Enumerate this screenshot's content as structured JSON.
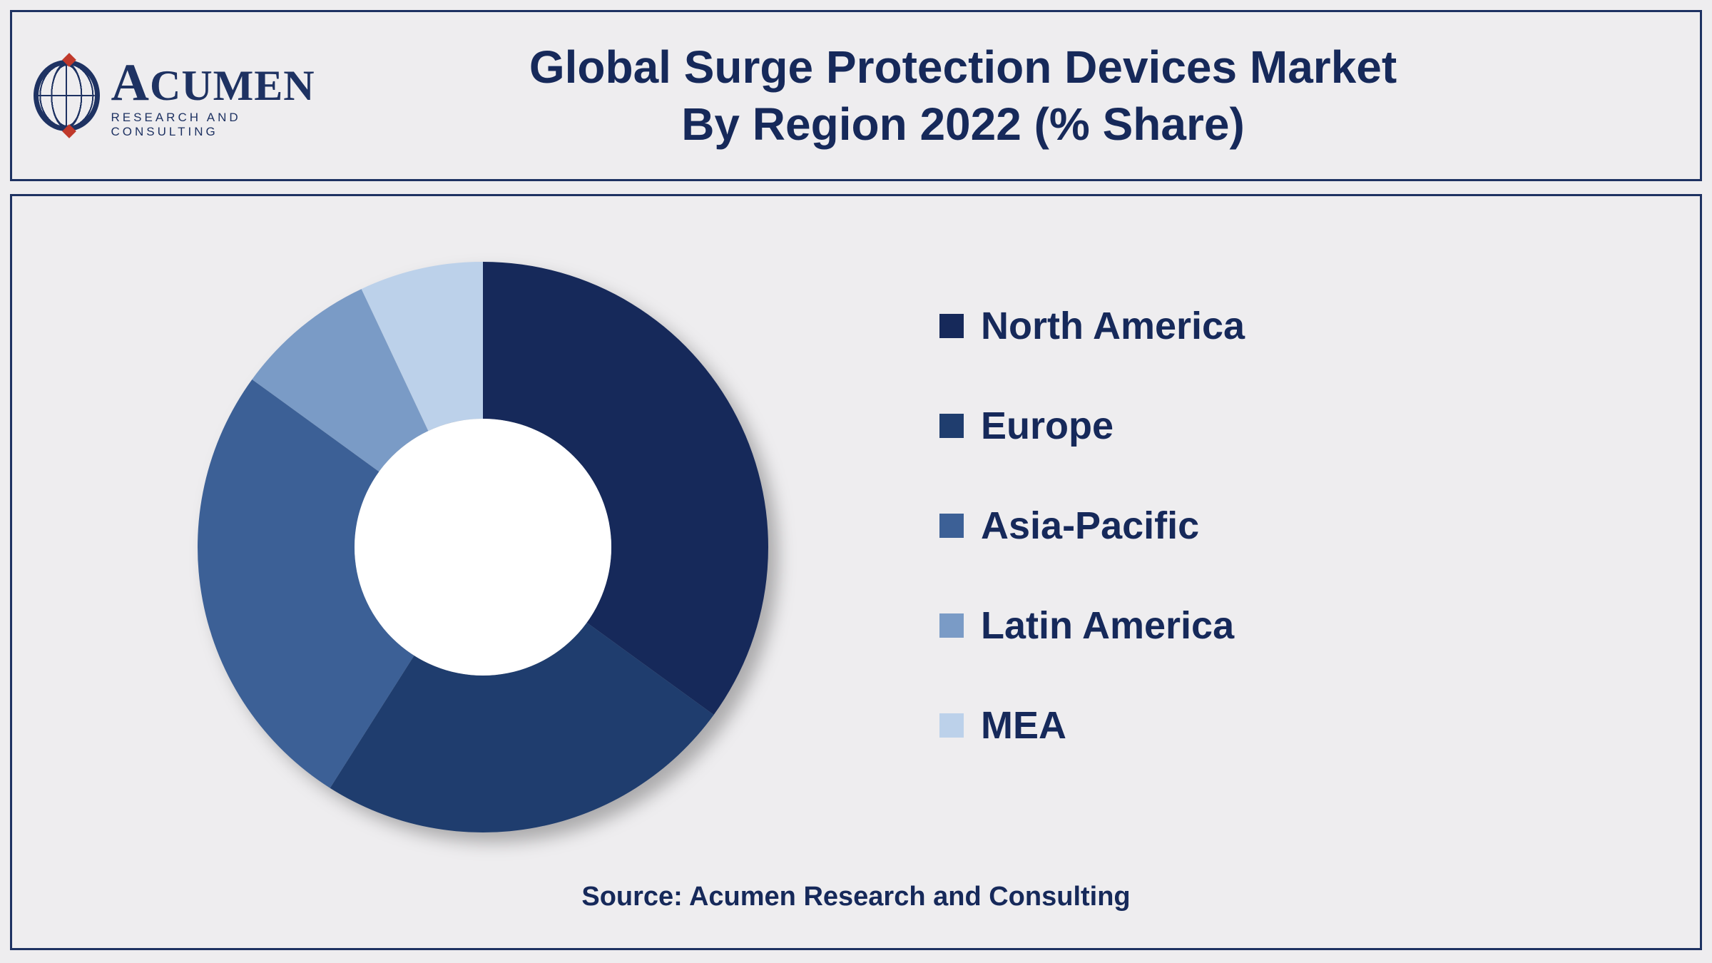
{
  "logo": {
    "name_html": "ACUMEN",
    "sub": "RESEARCH AND CONSULTING"
  },
  "title": {
    "line1": "Global Surge Protection Devices Market",
    "line2": "By Region 2022 (% Share)"
  },
  "chart": {
    "type": "donut",
    "inner_radius_pct": 45,
    "background_color": "#eeedef",
    "shadow": true,
    "series": [
      {
        "label": "North America",
        "value": 35,
        "color": "#16295a"
      },
      {
        "label": "Europe",
        "value": 24,
        "color": "#1f3d6e"
      },
      {
        "label": "Asia-Pacific",
        "value": 26,
        "color": "#3c6096"
      },
      {
        "label": "Latin America",
        "value": 8,
        "color": "#7a9bc6"
      },
      {
        "label": "MEA",
        "value": 7,
        "color": "#bcd1ea"
      }
    ],
    "legend_fontsize": 54,
    "legend_color": "#16295a",
    "source_label": "Source: Acumen Research and Consulting",
    "source_fontsize": 38
  }
}
